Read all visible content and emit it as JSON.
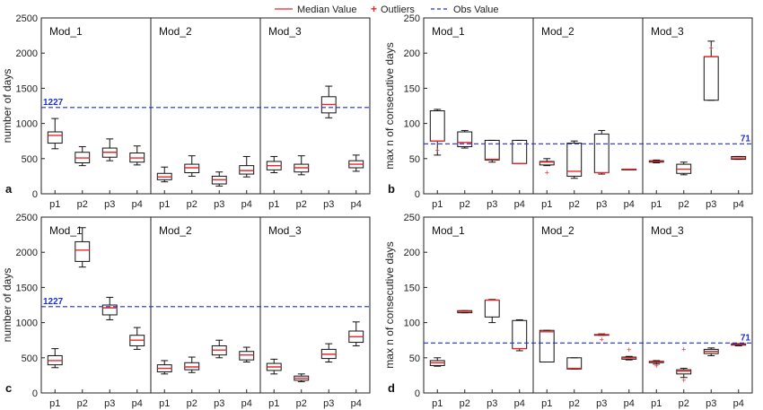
{
  "legend": {
    "median_label": "Median Value",
    "outliers_label": "Outliers",
    "obs_label": "Obs Value",
    "median_color": "#e8262a",
    "outlier_color": "#e8262a",
    "obs_color": "#1f2fd6"
  },
  "chart_data": [
    {
      "panel_letter": "a",
      "type": "box",
      "ylabel": "number of days",
      "ylim": [
        0,
        2500
      ],
      "yticks": [
        0,
        500,
        1000,
        1500,
        2000,
        2500
      ],
      "groups": [
        "Mod_1",
        "Mod_2",
        "Mod_3"
      ],
      "categories": [
        "p1",
        "p2",
        "p3",
        "p4"
      ],
      "obs_value": 1227,
      "obs_label": "1227",
      "obs_label_side": "left",
      "boxes": [
        [
          {
            "whisker_low": 640,
            "q1": 720,
            "median": 830,
            "q3": 880,
            "whisker_high": 1070
          },
          {
            "whisker_low": 400,
            "q1": 440,
            "median": 510,
            "q3": 590,
            "whisker_high": 670
          },
          {
            "whisker_low": 470,
            "q1": 520,
            "median": 590,
            "q3": 650,
            "whisker_high": 780
          },
          {
            "whisker_low": 410,
            "q1": 450,
            "median": 510,
            "q3": 580,
            "whisker_high": 680
          }
        ],
        [
          {
            "whisker_low": 170,
            "q1": 200,
            "median": 240,
            "q3": 290,
            "whisker_high": 380
          },
          {
            "whisker_low": 250,
            "q1": 300,
            "median": 370,
            "q3": 420,
            "whisker_high": 540
          },
          {
            "whisker_low": 110,
            "q1": 140,
            "median": 200,
            "q3": 250,
            "whisker_high": 310
          },
          {
            "whisker_low": 240,
            "q1": 280,
            "median": 330,
            "q3": 400,
            "whisker_high": 530
          }
        ],
        [
          {
            "whisker_low": 300,
            "q1": 340,
            "median": 400,
            "q3": 460,
            "whisker_high": 530
          },
          {
            "whisker_low": 270,
            "q1": 310,
            "median": 370,
            "q3": 420,
            "whisker_high": 540
          },
          {
            "whisker_low": 1080,
            "q1": 1150,
            "median": 1270,
            "q3": 1380,
            "whisker_high": 1530
          },
          {
            "whisker_low": 320,
            "q1": 370,
            "median": 420,
            "q3": 470,
            "whisker_high": 550
          }
        ]
      ],
      "outliers": []
    },
    {
      "panel_letter": "b",
      "type": "box",
      "ylabel": "max n of consecutive days",
      "ylim": [
        0,
        250
      ],
      "yticks": [
        0,
        50,
        100,
        150,
        200,
        250
      ],
      "groups": [
        "Mod_1",
        "Mod_2",
        "Mod_3"
      ],
      "categories": [
        "p1",
        "p2",
        "p3",
        "p4"
      ],
      "obs_value": 71,
      "obs_label": "71",
      "obs_label_side": "right",
      "boxes": [
        [
          {
            "whisker_low": 55,
            "q1": 75,
            "median": 75,
            "q3": 118,
            "whisker_high": 120
          },
          {
            "whisker_low": 65,
            "q1": 67,
            "median": 73,
            "q3": 88,
            "whisker_high": 90
          },
          {
            "whisker_low": 45,
            "q1": 48,
            "median": 49,
            "q3": 76,
            "whisker_high": 76
          },
          {
            "whisker_low": 43,
            "q1": 43,
            "median": 43,
            "q3": 76,
            "whisker_high": 76
          }
        ],
        [
          {
            "whisker_low": 40,
            "q1": 41,
            "median": 45,
            "q3": 46,
            "whisker_high": 50
          },
          {
            "whisker_low": 22,
            "q1": 25,
            "median": 32,
            "q3": 72,
            "whisker_high": 75
          },
          {
            "whisker_low": 28,
            "q1": 30,
            "median": 30,
            "q3": 85,
            "whisker_high": 90
          },
          {
            "whisker_low": 35,
            "q1": 35,
            "median": 35,
            "q3": 35,
            "whisker_high": 35
          }
        ],
        [
          {
            "whisker_low": 44,
            "q1": 45,
            "median": 46,
            "q3": 47,
            "whisker_high": 48
          },
          {
            "whisker_low": 27,
            "q1": 29,
            "median": 35,
            "q3": 42,
            "whisker_high": 45
          },
          {
            "whisker_low": 133,
            "q1": 133,
            "median": 195,
            "q3": 195,
            "whisker_high": 217
          },
          {
            "whisker_low": 49,
            "q1": 49,
            "median": 51,
            "q3": 53,
            "whisker_high": 53
          }
        ]
      ],
      "outliers": [
        {
          "group": 0,
          "cat": 0,
          "y": 62
        },
        {
          "group": 1,
          "cat": 0,
          "y": 30
        },
        {
          "group": 2,
          "cat": 2,
          "y": 207
        }
      ]
    },
    {
      "panel_letter": "c",
      "type": "box",
      "ylabel": "number of days",
      "ylim": [
        0,
        2500
      ],
      "yticks": [
        0,
        500,
        1000,
        1500,
        2000,
        2500
      ],
      "groups": [
        "Mod_1",
        "Mod_2",
        "Mod_3"
      ],
      "categories": [
        "p1",
        "p2",
        "p3",
        "p4"
      ],
      "obs_value": 1227,
      "obs_label": "1227",
      "obs_label_side": "left",
      "boxes": [
        [
          {
            "whisker_low": 360,
            "q1": 400,
            "median": 460,
            "q3": 530,
            "whisker_high": 630
          },
          {
            "whisker_low": 1790,
            "q1": 1870,
            "median": 2030,
            "q3": 2150,
            "whisker_high": 2350
          },
          {
            "whisker_low": 1040,
            "q1": 1110,
            "median": 1210,
            "q3": 1250,
            "whisker_high": 1360
          },
          {
            "whisker_low": 620,
            "q1": 670,
            "median": 750,
            "q3": 820,
            "whisker_high": 930
          }
        ],
        [
          {
            "whisker_low": 270,
            "q1": 300,
            "median": 350,
            "q3": 400,
            "whisker_high": 460
          },
          {
            "whisker_low": 290,
            "q1": 330,
            "median": 370,
            "q3": 430,
            "whisker_high": 510
          },
          {
            "whisker_low": 500,
            "q1": 540,
            "median": 610,
            "q3": 670,
            "whisker_high": 750
          },
          {
            "whisker_low": 440,
            "q1": 470,
            "median": 540,
            "q3": 590,
            "whisker_high": 650
          }
        ],
        [
          {
            "whisker_low": 270,
            "q1": 320,
            "median": 370,
            "q3": 420,
            "whisker_high": 480
          },
          {
            "whisker_low": 160,
            "q1": 180,
            "median": 210,
            "q3": 240,
            "whisker_high": 270
          },
          {
            "whisker_low": 440,
            "q1": 490,
            "median": 550,
            "q3": 620,
            "whisker_high": 700
          },
          {
            "whisker_low": 670,
            "q1": 720,
            "median": 800,
            "q3": 880,
            "whisker_high": 1010
          }
        ]
      ],
      "outliers": []
    },
    {
      "panel_letter": "d",
      "type": "box",
      "ylabel": "max n of consecutive days",
      "ylim": [
        0,
        250
      ],
      "yticks": [
        0,
        50,
        100,
        150,
        200,
        250
      ],
      "groups": [
        "Mod_1",
        "Mod_2",
        "Mod_3"
      ],
      "categories": [
        "p1",
        "p2",
        "p3",
        "p4"
      ],
      "obs_value": 71,
      "obs_label": "71",
      "obs_label_side": "right",
      "boxes": [
        [
          {
            "whisker_low": 38,
            "q1": 39,
            "median": 43,
            "q3": 46,
            "whisker_high": 50
          },
          {
            "whisker_low": 114,
            "q1": 114,
            "median": 116,
            "q3": 117,
            "whisker_high": 117
          },
          {
            "whisker_low": 100,
            "q1": 108,
            "median": 132,
            "q3": 132,
            "whisker_high": 133
          },
          {
            "whisker_low": 60,
            "q1": 63,
            "median": 63,
            "q3": 103,
            "whisker_high": 104
          }
        ],
        [
          {
            "whisker_low": 44,
            "q1": 44,
            "median": 87,
            "q3": 89,
            "whisker_high": 89
          },
          {
            "whisker_low": 34,
            "q1": 34,
            "median": 35,
            "q3": 50,
            "whisker_high": 50
          },
          {
            "whisker_low": 82,
            "q1": 82,
            "median": 83,
            "q3": 83,
            "whisker_high": 84
          },
          {
            "whisker_low": 47,
            "q1": 48,
            "median": 50,
            "q3": 51,
            "whisker_high": 52
          }
        ],
        [
          {
            "whisker_low": 41,
            "q1": 43,
            "median": 44,
            "q3": 45,
            "whisker_high": 46
          },
          {
            "whisker_low": 22,
            "q1": 27,
            "median": 31,
            "q3": 33,
            "whisker_high": 35
          },
          {
            "whisker_low": 53,
            "q1": 56,
            "median": 59,
            "q3": 62,
            "whisker_high": 64
          },
          {
            "whisker_low": 67,
            "q1": 68,
            "median": 69,
            "q3": 70,
            "whisker_high": 70
          }
        ]
      ],
      "outliers": [
        {
          "group": 1,
          "cat": 2,
          "y": 76
        },
        {
          "group": 1,
          "cat": 3,
          "y": 61
        },
        {
          "group": 2,
          "cat": 0,
          "y": 38
        },
        {
          "group": 2,
          "cat": 1,
          "y": 62
        },
        {
          "group": 2,
          "cat": 1,
          "y": 18
        }
      ]
    }
  ]
}
